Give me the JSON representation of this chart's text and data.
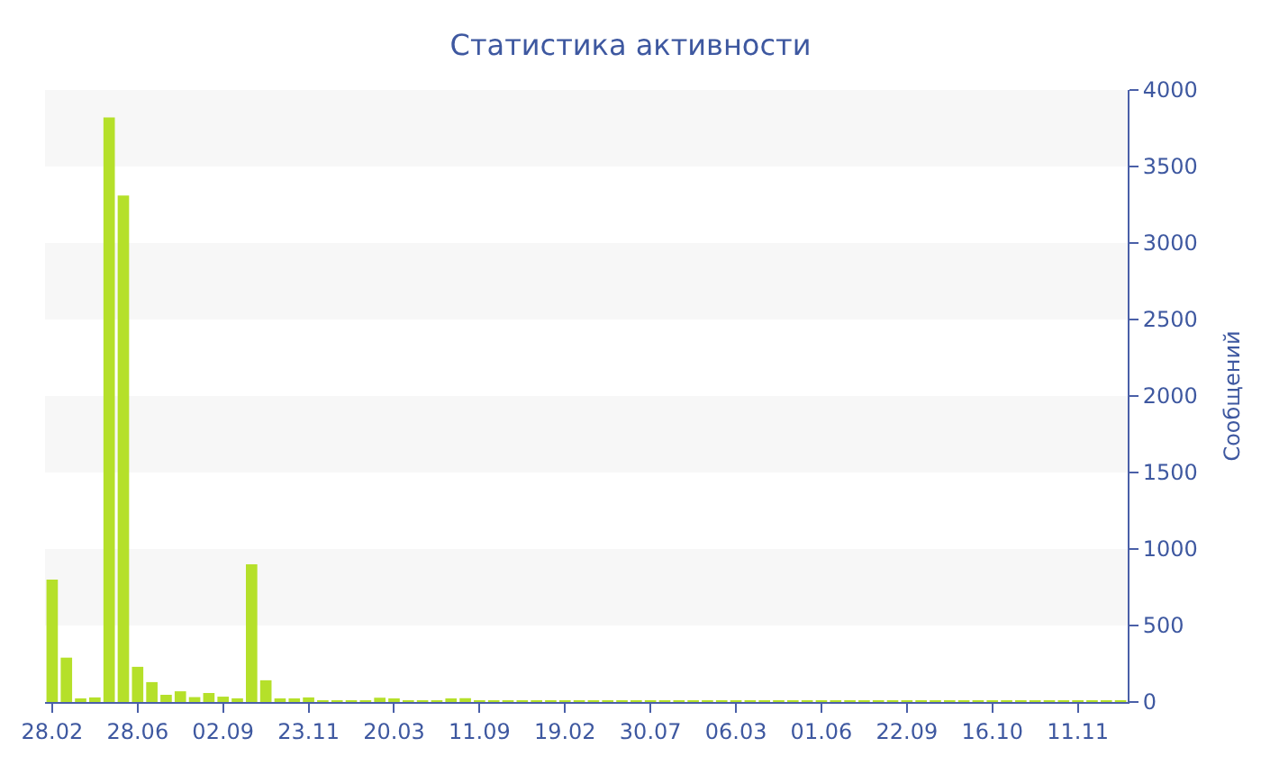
{
  "chart_data": {
    "type": "bar",
    "title": "Статистика активности",
    "ylabel": "Сообщений",
    "categories": [
      "28.02",
      null,
      null,
      null,
      null,
      null,
      "28.06",
      null,
      null,
      null,
      null,
      null,
      "02.09",
      null,
      null,
      null,
      null,
      null,
      "23.11",
      null,
      null,
      null,
      null,
      null,
      "20.03",
      null,
      null,
      null,
      null,
      null,
      "11.09",
      null,
      null,
      null,
      null,
      null,
      "19.02",
      null,
      null,
      null,
      null,
      null,
      "30.07",
      null,
      null,
      null,
      null,
      null,
      "06.03",
      null,
      null,
      null,
      null,
      null,
      "01.06",
      null,
      null,
      null,
      null,
      null,
      "22.09",
      null,
      null,
      null,
      null,
      null,
      "16.10",
      null,
      null,
      null,
      null,
      null,
      "11.11",
      null,
      null,
      null
    ],
    "values": [
      800,
      290,
      15,
      30,
      3820,
      3310,
      230,
      130,
      47,
      70,
      32,
      59,
      35,
      24,
      900,
      142,
      20,
      12,
      30,
      10,
      10,
      10,
      10,
      28,
      12,
      10,
      10,
      10,
      15,
      25,
      8,
      8,
      8,
      8,
      8,
      8,
      5,
      5,
      5,
      5,
      5,
      5,
      5,
      5,
      5,
      5,
      5,
      5,
      5,
      5,
      5,
      5,
      5,
      5,
      5,
      5,
      5,
      5,
      5,
      5,
      5,
      5,
      5,
      5,
      5,
      5,
      5,
      5,
      5,
      5,
      5,
      5,
      5,
      5,
      5,
      5
    ],
    "color": "#b5e02a",
    "ylim": [
      0,
      4000
    ],
    "yticks": [
      0,
      500,
      1000,
      1500,
      2000,
      2500,
      3000,
      3500,
      4000
    ],
    "bands": [
      {
        "axis": "y",
        "from": 500,
        "to": 1000,
        "color": "#f7f7f7"
      },
      {
        "axis": "y",
        "from": 1500,
        "to": 2000,
        "color": "#f7f7f7"
      },
      {
        "axis": "y",
        "from": 2500,
        "to": 3000,
        "color": "#f7f7f7"
      },
      {
        "axis": "y",
        "from": 3500,
        "to": 4000,
        "color": "#f7f7f7"
      }
    ],
    "grid": false,
    "legend": false
  }
}
